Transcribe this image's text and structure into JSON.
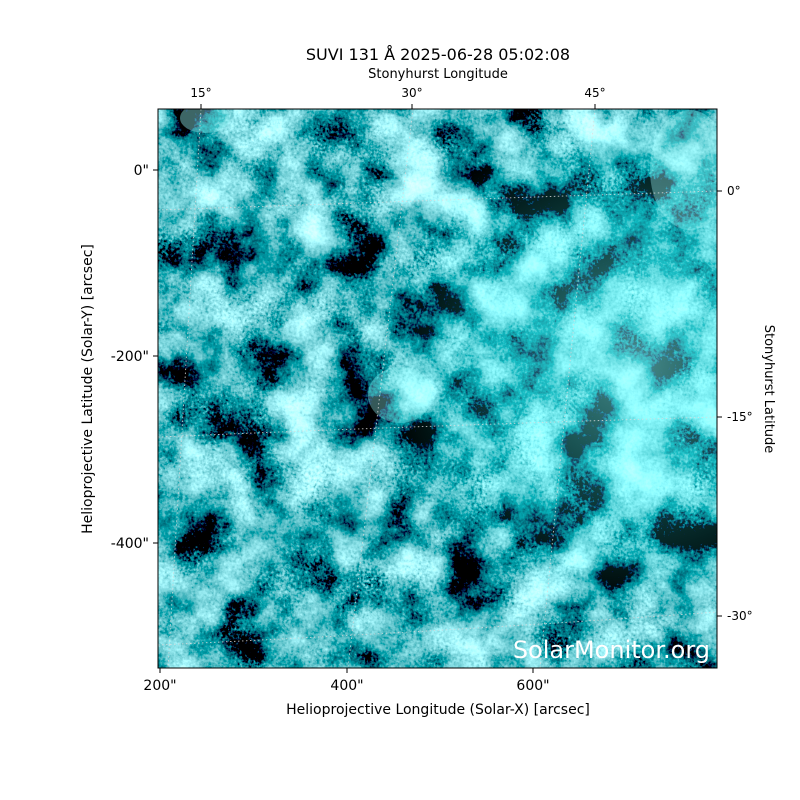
{
  "title": "SUVI 131 Å 2025-06-28 05:02:08",
  "top_axis_label": "Stonyhurst Longitude",
  "bottom_axis_label": "Helioprojective Longitude (Solar-X) [arcsec]",
  "left_axis_label": "Helioprojective Latitude (Solar-Y) [arcsec]",
  "right_axis_label": "Stonyhurst Latitude",
  "bottom_ticks": [
    "200\"",
    "400\"",
    "600\""
  ],
  "left_ticks": [
    "0\"",
    "-200\"",
    "-400\""
  ],
  "top_ticks": [
    "15°",
    "30°",
    "45°"
  ],
  "right_ticks": [
    "0°",
    "-15°",
    "-30°"
  ],
  "watermark": "SolarMonitor.org"
}
